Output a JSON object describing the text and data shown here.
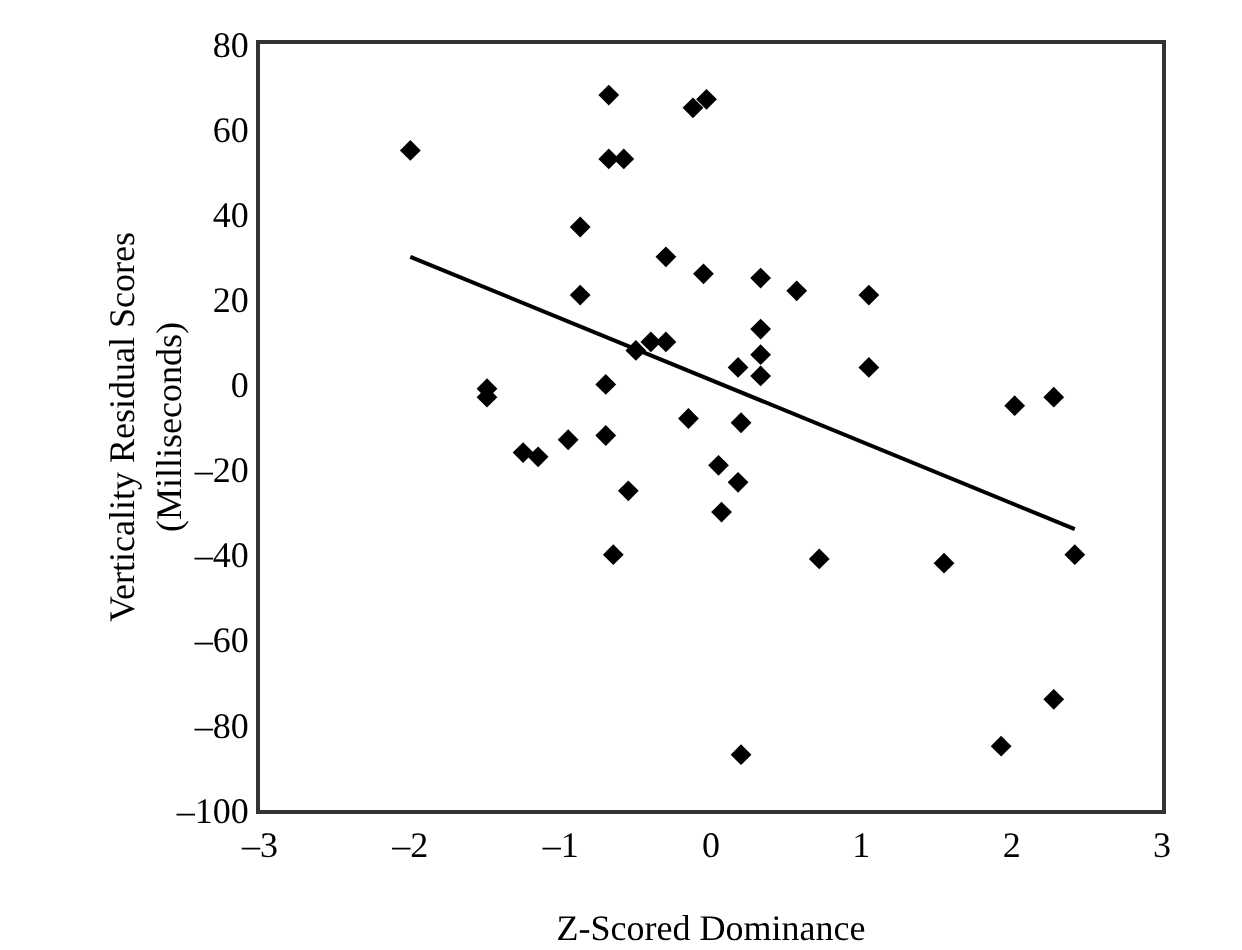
{
  "chart_data": {
    "type": "scatter",
    "xlabel": "Z-Scored Dominance",
    "ylabel": "Verticality Residual Scores\n(Milliseconds)",
    "xlim": [
      -3,
      3
    ],
    "xticks": [
      {
        "value": -3,
        "label": "–3"
      },
      {
        "value": -2,
        "label": "–2"
      },
      {
        "value": -1,
        "label": "–1"
      },
      0,
      1,
      2,
      3
    ],
    "ylim": [
      -100,
      80
    ],
    "yticks": [
      {
        "value": -100,
        "label": "–100"
      },
      {
        "value": -80,
        "label": "–80"
      },
      {
        "value": -60,
        "label": "–60"
      },
      {
        "value": -40,
        "label": "–40"
      },
      {
        "value": -20,
        "label": "–20"
      },
      0,
      20,
      40,
      60,
      80
    ],
    "grid": false,
    "marker": "diamond",
    "series": [
      {
        "color": "#000000",
        "x": [
          -2.0,
          -1.49,
          -1.49,
          -1.25,
          -1.15,
          -0.95,
          -0.87,
          -0.87,
          -0.68,
          -0.68,
          -0.58,
          -0.7,
          -0.7,
          -0.55,
          -0.65,
          -0.5,
          -0.4,
          -0.3,
          -0.3,
          -0.15,
          -0.12,
          -0.03,
          -0.05,
          0.05,
          0.07,
          0.18,
          0.18,
          0.2,
          0.33,
          0.33,
          0.33,
          0.33,
          0.57,
          1.05,
          1.05,
          0.72,
          1.55,
          2.02,
          2.28,
          2.42,
          2.28,
          1.93,
          0.2
        ],
        "values": [
          55,
          -1,
          -3,
          -16,
          -17,
          -13,
          37,
          21,
          68,
          53,
          53,
          0,
          -12,
          -25,
          -40,
          8,
          10,
          10,
          30,
          -8,
          65,
          67,
          26,
          -19,
          -30,
          -23,
          4,
          -9,
          25,
          13,
          7,
          2,
          22,
          21,
          4,
          -41,
          -42,
          -5,
          -3,
          -40,
          -74,
          -85,
          -87
        ]
      },
      {
        "type": "line",
        "color": "#000000",
        "x": [
          -2.0,
          2.42
        ],
        "values": [
          30,
          -34
        ],
        "marker": "none",
        "line_style": "solid"
      }
    ]
  }
}
